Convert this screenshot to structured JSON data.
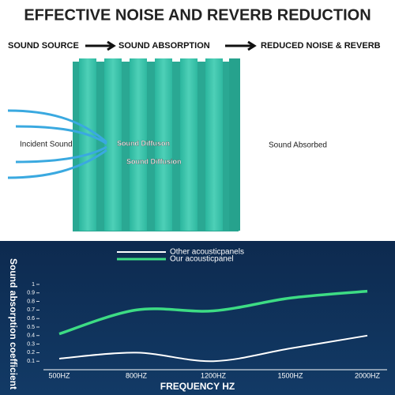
{
  "header": {
    "title": "EFFECTIVE NOISE AND REVERB REDUCTION",
    "steps": [
      "SOUND SOURCE",
      "SOUND ABSORPTION",
      "REDUCED NOISE & REVERB"
    ]
  },
  "diagram": {
    "labels": [
      "Incident Sound",
      "Sound Diffuson",
      "Sound Diffusion",
      "Sound Absorbed"
    ]
  },
  "chart_data": {
    "type": "line",
    "y_label": "Sound absorption coefficient",
    "x_label": "FREQUENCY HZ",
    "categories": [
      "500HZ",
      "800HZ",
      "1200HZ",
      "1500HZ",
      "2000HZ"
    ],
    "series": [
      {
        "name": "Other acousticpanels",
        "color": "#ffffff",
        "values": [
          0.13,
          0.2,
          0.1,
          0.25,
          0.4
        ]
      },
      {
        "name": "Our acousticpanel",
        "color": "#3ddc84",
        "values": [
          0.42,
          0.7,
          0.69,
          0.84,
          0.92
        ]
      }
    ],
    "ylim": [
      0,
      1
    ],
    "yticks": [
      0.1,
      0.2,
      0.3,
      0.4,
      0.5,
      0.6,
      0.7,
      0.8,
      0.9,
      1
    ],
    "grid": false
  }
}
